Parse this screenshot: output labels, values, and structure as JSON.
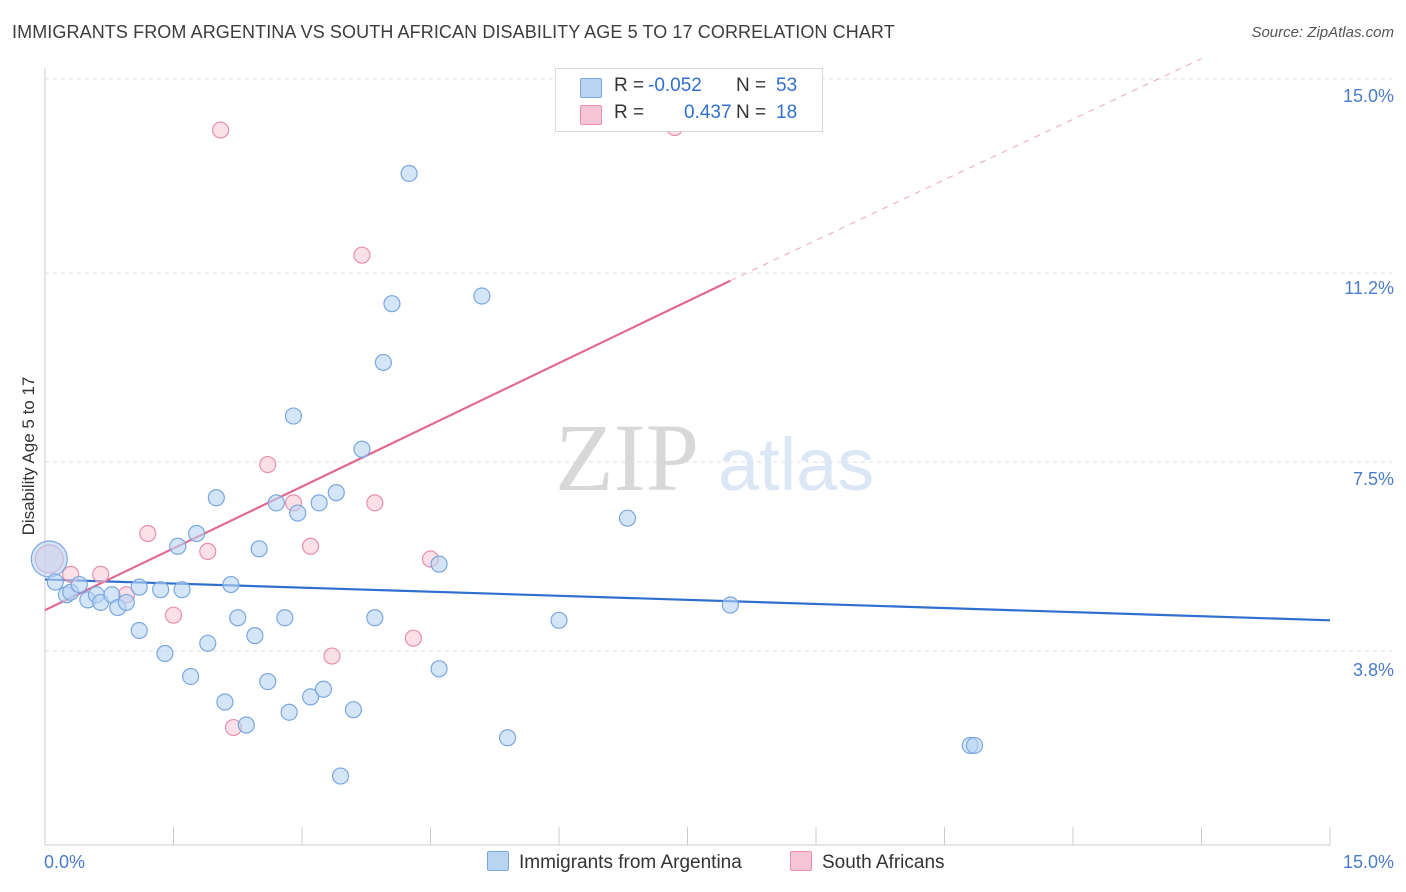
{
  "title": "IMMIGRANTS FROM ARGENTINA VS SOUTH AFRICAN DISABILITY AGE 5 TO 17 CORRELATION CHART",
  "source": "Source: ZipAtlas.com",
  "watermark": {
    "zip": "ZIP",
    "atlas": "atlas"
  },
  "colors": {
    "blue_fill": "#b9d3f3",
    "blue_stroke": "#7aa7e0",
    "blue_line": "#2f6fd0",
    "pink_fill": "#f7c6d6",
    "pink_stroke": "#e88fab",
    "pink_line": "#e06a93",
    "tick_text": "#4a7dc9",
    "grid": "#dddddd"
  },
  "legend": {
    "rows": [
      {
        "r_label": "R =",
        "r_value": "-0.052",
        "n_label": "N =",
        "n_value": "53"
      },
      {
        "r_label": "R =",
        "r_value": "0.437",
        "n_label": "N =",
        "n_value": "18"
      }
    ]
  },
  "bottom_legend": [
    "Immigrants from Argentina",
    "South Africans"
  ],
  "chart_data": {
    "type": "scatter",
    "title": "IMMIGRANTS FROM ARGENTINA VS SOUTH AFRICAN DISABILITY AGE 5 TO 17 CORRELATION CHART",
    "xlabel": "",
    "ylabel": "Disability Age 5 to 17",
    "xlim": [
      0,
      15
    ],
    "ylim": [
      0,
      15
    ],
    "x_tick_labels": [
      "0.0%",
      "15.0%"
    ],
    "y_ticks": [
      3.8,
      7.5,
      11.2,
      15.0
    ],
    "y_tick_labels": [
      "3.8%",
      "7.5%",
      "11.2%",
      "15.0%"
    ],
    "grid": true,
    "series": [
      {
        "name": "Immigrants from Argentina",
        "R": -0.052,
        "N": 53,
        "trend": {
          "x": [
            0,
            15
          ],
          "y": [
            5.2,
            4.4
          ]
        },
        "points": [
          [
            0.05,
            5.6
          ],
          [
            0.12,
            5.15
          ],
          [
            0.25,
            4.9
          ],
          [
            0.3,
            4.95
          ],
          [
            0.4,
            5.1
          ],
          [
            0.5,
            4.8
          ],
          [
            0.6,
            4.9
          ],
          [
            0.65,
            4.75
          ],
          [
            0.78,
            4.9
          ],
          [
            0.85,
            4.65
          ],
          [
            0.95,
            4.75
          ],
          [
            1.1,
            4.2
          ],
          [
            1.1,
            5.05
          ],
          [
            1.35,
            5.0
          ],
          [
            1.4,
            3.75
          ],
          [
            1.55,
            5.85
          ],
          [
            1.6,
            5.0
          ],
          [
            1.7,
            3.3
          ],
          [
            1.77,
            6.1
          ],
          [
            1.9,
            3.95
          ],
          [
            2.0,
            6.8
          ],
          [
            2.1,
            2.8
          ],
          [
            2.17,
            5.1
          ],
          [
            2.25,
            4.45
          ],
          [
            2.35,
            2.35
          ],
          [
            2.45,
            4.1
          ],
          [
            2.5,
            5.8
          ],
          [
            2.6,
            3.2
          ],
          [
            2.7,
            6.7
          ],
          [
            2.8,
            4.45
          ],
          [
            2.85,
            2.6
          ],
          [
            2.9,
            8.4
          ],
          [
            2.95,
            6.5
          ],
          [
            3.1,
            2.9
          ],
          [
            3.2,
            6.7
          ],
          [
            3.25,
            3.05
          ],
          [
            3.4,
            6.9
          ],
          [
            3.45,
            1.35
          ],
          [
            3.6,
            2.65
          ],
          [
            3.7,
            7.75
          ],
          [
            3.85,
            4.45
          ],
          [
            3.95,
            9.45
          ],
          [
            4.05,
            10.6
          ],
          [
            4.25,
            13.15
          ],
          [
            4.6,
            3.45
          ],
          [
            4.6,
            5.5
          ],
          [
            5.1,
            10.75
          ],
          [
            5.4,
            2.1
          ],
          [
            6.0,
            4.4
          ],
          [
            6.8,
            6.4
          ],
          [
            8.0,
            4.7
          ],
          [
            10.8,
            1.95
          ],
          [
            10.85,
            1.95
          ]
        ]
      },
      {
        "name": "South Africans",
        "R": 0.437,
        "N": 18,
        "trend": {
          "x": [
            0,
            8.0
          ],
          "y": [
            4.6,
            11.05
          ]
        },
        "trend_extended": {
          "x": [
            8.0,
            13.5
          ],
          "y": [
            11.05,
            15.4
          ]
        },
        "points": [
          [
            0.05,
            5.6
          ],
          [
            0.3,
            5.3
          ],
          [
            0.65,
            5.3
          ],
          [
            0.95,
            4.9
          ],
          [
            1.2,
            6.1
          ],
          [
            1.5,
            4.5
          ],
          [
            1.9,
            5.75
          ],
          [
            2.05,
            14.0
          ],
          [
            2.2,
            2.3
          ],
          [
            2.6,
            7.45
          ],
          [
            2.9,
            6.7
          ],
          [
            3.1,
            5.85
          ],
          [
            3.35,
            3.7
          ],
          [
            3.7,
            11.55
          ],
          [
            3.85,
            6.7
          ],
          [
            4.3,
            4.05
          ],
          [
            4.5,
            5.6
          ],
          [
            7.35,
            14.05
          ]
        ]
      }
    ]
  }
}
